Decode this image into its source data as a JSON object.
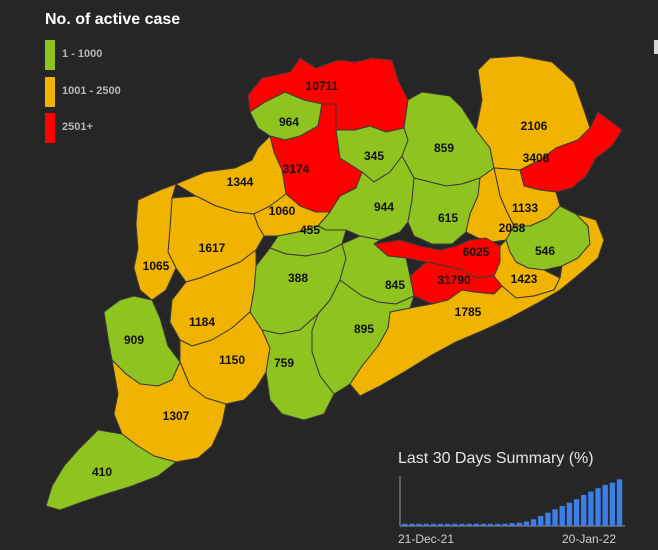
{
  "legend": {
    "title": "No. of active case",
    "items": [
      {
        "label": "1 - 1000",
        "color": "#8fc31f"
      },
      {
        "label": "1001 - 2500",
        "color": "#f0b400"
      },
      {
        "label": "2501+",
        "color": "#ff0000"
      }
    ]
  },
  "districts": [
    {
      "value": "10711",
      "category": "2501+"
    },
    {
      "value": "964",
      "category": "1 - 1000"
    },
    {
      "value": "3174",
      "category": "2501+"
    },
    {
      "value": "345",
      "category": "1 - 1000"
    },
    {
      "value": "859",
      "category": "1 - 1000"
    },
    {
      "value": "2106",
      "category": "1001 - 2500"
    },
    {
      "value": "3408",
      "category": "2501+"
    },
    {
      "value": "1344",
      "category": "1001 - 2500"
    },
    {
      "value": "1060",
      "category": "1001 - 2500"
    },
    {
      "value": "944",
      "category": "1 - 1000"
    },
    {
      "value": "615",
      "category": "1 - 1000"
    },
    {
      "value": "1133",
      "category": "1001 - 2500"
    },
    {
      "value": "2058",
      "category": "1001 - 2500"
    },
    {
      "value": "455",
      "category": "1 - 1000"
    },
    {
      "value": "1617",
      "category": "1001 - 2500"
    },
    {
      "value": "6025",
      "category": "2501+"
    },
    {
      "value": "546",
      "category": "1 - 1000"
    },
    {
      "value": "1065",
      "category": "1001 - 2500"
    },
    {
      "value": "388",
      "category": "1 - 1000"
    },
    {
      "value": "845",
      "category": "1 - 1000"
    },
    {
      "value": "31790",
      "category": "2501+"
    },
    {
      "value": "1423",
      "category": "1001 - 2500"
    },
    {
      "value": "1184",
      "category": "1001 - 2500"
    },
    {
      "value": "1785",
      "category": "1001 - 2500"
    },
    {
      "value": "895",
      "category": "1 - 1000"
    },
    {
      "value": "909",
      "category": "1 - 1000"
    },
    {
      "value": "1150",
      "category": "1001 - 2500"
    },
    {
      "value": "759",
      "category": "1 - 1000"
    },
    {
      "value": "1307",
      "category": "1001 - 2500"
    },
    {
      "value": "410",
      "category": "1 - 1000"
    }
  ],
  "summary": {
    "title": "Last 30 Days Summary (%)",
    "start_date": "21-Dec-21",
    "end_date": "20-Jan-22",
    "bar_color": "#3d7fe6",
    "chart_data": {
      "type": "bar",
      "values": [
        0.4,
        0.4,
        0.4,
        0.4,
        0.4,
        0.4,
        0.4,
        0.4,
        0.4,
        0.4,
        0.4,
        0.4,
        0.4,
        0.4,
        0.4,
        0.5,
        0.6,
        0.8,
        1.2,
        1.8,
        2.4,
        3.0,
        3.6,
        4.2,
        4.8,
        5.6,
        6.2,
        6.8,
        7.4,
        7.8,
        8.4
      ],
      "title": "Last 30 Days Summary (%)",
      "xlabel": "",
      "ylabel": "",
      "x_start": "21-Dec-21",
      "x_end": "20-Jan-22",
      "grid": false
    }
  }
}
